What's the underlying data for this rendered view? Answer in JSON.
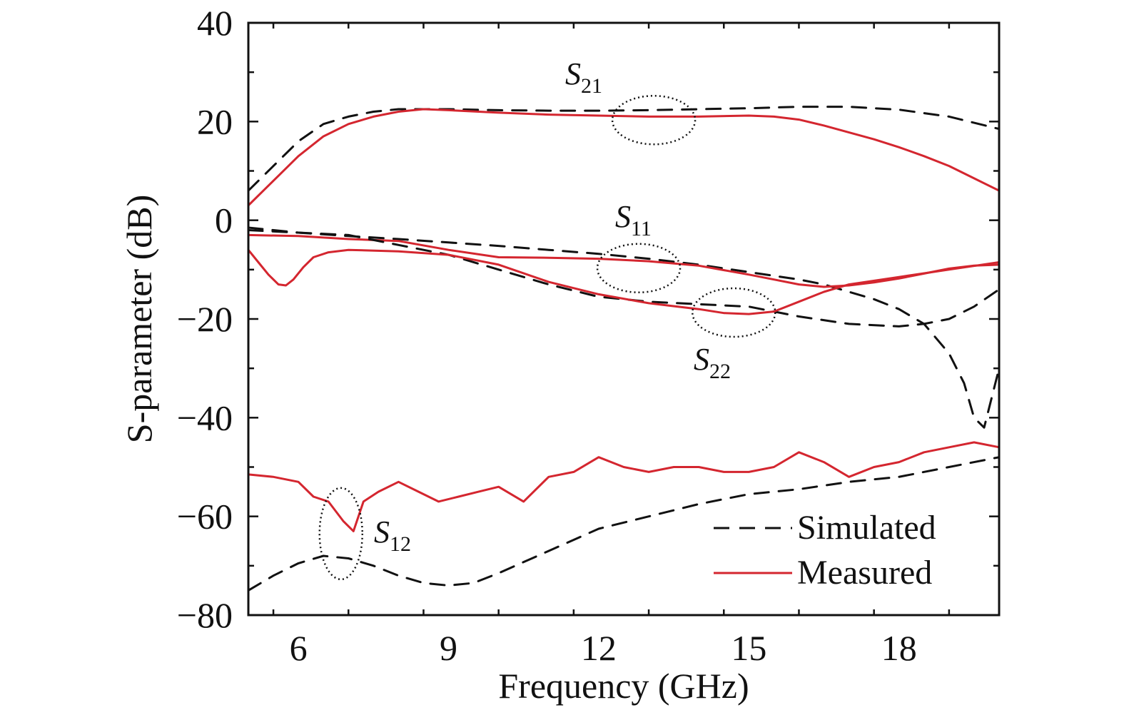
{
  "chart_data": {
    "type": "line",
    "xlabel": "Frequency (GHz)",
    "ylabel": "S-parameter (dB)",
    "xlim": [
      5,
      20
    ],
    "ylim": [
      -80,
      40
    ],
    "x_ticks": [
      6,
      9,
      12,
      15,
      18
    ],
    "y_ticks": [
      40,
      20,
      0,
      -20,
      -40,
      -60,
      -80
    ],
    "y_tick_labels": [
      "40",
      "20",
      "0",
      "−20",
      "−40",
      "−60",
      "−80"
    ],
    "grid": false,
    "legend": {
      "position": "bottom-right",
      "entries": [
        {
          "label": "Simulated",
          "style": "dashed",
          "color": "#111111"
        },
        {
          "label": "Measured",
          "style": "solid",
          "color": "#d4262f"
        }
      ]
    },
    "colors": {
      "simulated": "#111111",
      "measured": "#d4262f"
    },
    "series": [
      {
        "param": "S21",
        "kind": "Simulated",
        "x": [
          5,
          5.5,
          6,
          6.5,
          7,
          7.5,
          8,
          9,
          10,
          11,
          12,
          13,
          14,
          15,
          16,
          17,
          18,
          19,
          20
        ],
        "y": [
          6,
          11,
          16,
          19.5,
          21,
          22,
          22.5,
          22.5,
          22.3,
          22.2,
          22.2,
          22.3,
          22.5,
          22.7,
          23,
          23,
          22.4,
          21,
          18.5
        ]
      },
      {
        "param": "S21",
        "kind": "Measured",
        "x": [
          5,
          5.3,
          5.6,
          6,
          6.5,
          7,
          7.5,
          8,
          8.5,
          9,
          10,
          11,
          12,
          13,
          14,
          15,
          15.5,
          16,
          16.5,
          17,
          17.5,
          18,
          18.5,
          19,
          19.5,
          20
        ],
        "y": [
          3,
          6,
          9,
          13,
          17,
          19.5,
          21,
          22,
          22.5,
          22.3,
          21.8,
          21.4,
          21.2,
          21,
          21,
          21.2,
          21,
          20.4,
          19.2,
          17.8,
          16.4,
          14.8,
          13,
          11,
          8.5,
          6
        ]
      },
      {
        "param": "S11",
        "kind": "Simulated",
        "x": [
          5,
          6,
          7,
          8,
          9,
          10,
          11,
          12,
          13,
          14,
          15,
          16,
          16.5,
          17,
          17.5,
          18,
          18.5,
          19,
          19.3,
          19.5,
          19.7,
          20
        ],
        "y": [
          -1.5,
          -2.5,
          -3.2,
          -3.8,
          -4.5,
          -5.2,
          -6,
          -6.8,
          -7.8,
          -9,
          -10.5,
          -12,
          -13,
          -14.5,
          -16,
          -18,
          -21,
          -27,
          -33,
          -40,
          -42,
          -30
        ]
      },
      {
        "param": "S11",
        "kind": "Measured",
        "x": [
          5,
          6,
          7,
          8,
          9,
          10,
          11,
          12,
          13,
          14,
          15,
          15.5,
          16,
          16.5,
          17,
          17.5,
          18,
          18.5,
          19,
          19.5,
          20
        ],
        "y": [
          -3,
          -3.2,
          -3.8,
          -4.2,
          -6,
          -7.5,
          -7.6,
          -7.8,
          -8.3,
          -9.2,
          -11,
          -12,
          -13,
          -13.5,
          -13.2,
          -12.6,
          -11.8,
          -10.8,
          -9.8,
          -9.2,
          -9
        ]
      },
      {
        "param": "S22",
        "kind": "Simulated",
        "x": [
          5,
          6,
          7,
          8,
          9,
          10,
          11,
          12,
          13,
          14,
          15,
          16,
          17,
          18,
          18.5,
          19,
          19.5,
          20
        ],
        "y": [
          -2,
          -2.5,
          -3,
          -5,
          -7,
          -10,
          -13,
          -15.5,
          -16.5,
          -17,
          -17.5,
          -19.5,
          -21,
          -21.5,
          -21,
          -20,
          -17.5,
          -14
        ]
      },
      {
        "param": "S22",
        "kind": "Measured",
        "x": [
          5,
          5.2,
          5.4,
          5.6,
          5.75,
          5.9,
          6.1,
          6.3,
          6.6,
          7,
          8,
          9,
          10,
          11,
          12,
          13,
          14,
          14.5,
          15,
          15.5,
          16,
          16.5,
          17,
          18,
          19,
          20
        ],
        "y": [
          -6,
          -8.5,
          -11,
          -13,
          -13.2,
          -12,
          -9.5,
          -7.5,
          -6.5,
          -6,
          -6.3,
          -7,
          -9,
          -12.5,
          -15,
          -16.8,
          -18,
          -18.8,
          -19,
          -18.5,
          -16.5,
          -14.5,
          -13,
          -11.5,
          -10,
          -8.5
        ]
      },
      {
        "param": "S12",
        "kind": "Simulated",
        "x": [
          5,
          5.5,
          6,
          6.5,
          7,
          7.5,
          8,
          8.5,
          9,
          9.5,
          10,
          11,
          12,
          13,
          14,
          15,
          16,
          17,
          18,
          19,
          20
        ],
        "y": [
          -75,
          -72,
          -69.5,
          -68,
          -68.5,
          -70,
          -72,
          -73.5,
          -74,
          -73.5,
          -71.5,
          -67,
          -62.5,
          -60,
          -57.5,
          -55.5,
          -54.5,
          -53,
          -52,
          -50,
          -48
        ]
      },
      {
        "param": "S12",
        "kind": "Measured",
        "x": [
          5,
          5.5,
          6,
          6.3,
          6.6,
          6.9,
          7.1,
          7.3,
          7.6,
          8,
          8.4,
          8.8,
          9.2,
          9.6,
          10,
          10.5,
          11,
          11.5,
          12,
          12.5,
          13,
          13.5,
          14,
          14.5,
          15,
          15.5,
          16,
          16.5,
          17,
          17.5,
          18,
          18.5,
          19,
          19.5,
          20
        ],
        "y": [
          -51.5,
          -52,
          -53,
          -56,
          -57,
          -61,
          -63,
          -57,
          -55,
          -53,
          -55,
          -57,
          -56,
          -55,
          -54,
          -57,
          -52,
          -51,
          -48,
          -50,
          -51,
          -50,
          -50,
          -51,
          -51,
          -50,
          -47,
          -49,
          -52,
          -50,
          -49,
          -47,
          -46,
          -45,
          -46
        ]
      }
    ],
    "annotations": [
      {
        "main": "S",
        "sub": "21"
      },
      {
        "main": "S",
        "sub": "11"
      },
      {
        "main": "S",
        "sub": "22"
      },
      {
        "main": "S",
        "sub": "12"
      }
    ]
  }
}
